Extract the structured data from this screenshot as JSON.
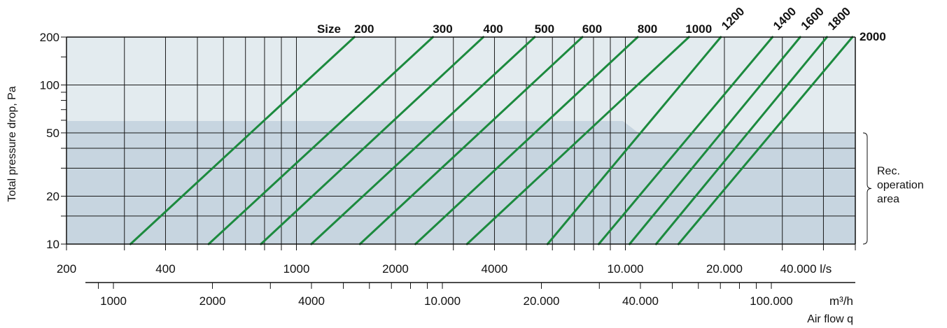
{
  "chart_data": {
    "type": "line",
    "title": "",
    "ylabel": "Total pressure drop, Pa",
    "xlabel": "Air flow q",
    "x_scale": "log",
    "y_scale": "log",
    "xlim": [
      200,
      50000
    ],
    "ylim": [
      10,
      200
    ],
    "x_unit_primary": "l/s",
    "x_unit_secondary": "m³/h",
    "x_tick_labels_primary": [
      {
        "value": 200,
        "label": "200"
      },
      {
        "value": 400,
        "label": "400"
      },
      {
        "value": 1000,
        "label": "1000"
      },
      {
        "value": 2000,
        "label": "2000"
      },
      {
        "value": 4000,
        "label": "4000"
      },
      {
        "value": 10000,
        "label": "10.000"
      },
      {
        "value": 20000,
        "label": "20.000"
      },
      {
        "value": 40000,
        "label": "40.000"
      }
    ],
    "x_tick_labels_secondary": [
      {
        "value": 1000,
        "label": "1000"
      },
      {
        "value": 2000,
        "label": "2000"
      },
      {
        "value": 4000,
        "label": "4000"
      },
      {
        "value": 10000,
        "label": "10.000"
      },
      {
        "value": 20000,
        "label": "20.000"
      },
      {
        "value": 40000,
        "label": "40.000"
      },
      {
        "value": 100000,
        "label": "100.000"
      }
    ],
    "y_tick_labels": [
      {
        "value": 10,
        "label": "10"
      },
      {
        "value": 20,
        "label": "20"
      },
      {
        "value": 50,
        "label": "50"
      },
      {
        "value": 100,
        "label": "100"
      },
      {
        "value": 200,
        "label": "200"
      }
    ],
    "x_grid_lines": [
      300,
      400,
      500,
      600,
      700,
      800,
      900,
      1000,
      2000,
      3000,
      4000,
      5000,
      6000,
      7000,
      8000,
      9000,
      10000,
      20000,
      30000,
      40000
    ],
    "y_grid_lines": [
      10,
      15,
      20,
      30,
      40,
      50,
      100
    ],
    "series_prefix_label": "Size",
    "series": [
      {
        "name": "200",
        "points": [
          [
            313,
            10
          ],
          [
            1500,
            200
          ]
        ]
      },
      {
        "name": "300",
        "points": [
          [
            541,
            10
          ],
          [
            2600,
            200
          ]
        ]
      },
      {
        "name": "400",
        "points": [
          [
            780,
            10
          ],
          [
            3700,
            200
          ]
        ]
      },
      {
        "name": "500",
        "points": [
          [
            1110,
            10
          ],
          [
            5300,
            200
          ]
        ]
      },
      {
        "name": "600",
        "points": [
          [
            1560,
            10
          ],
          [
            7400,
            200
          ]
        ]
      },
      {
        "name": "800",
        "points": [
          [
            2300,
            10
          ],
          [
            10900,
            200
          ]
        ]
      },
      {
        "name": "1000",
        "points": [
          [
            3300,
            10
          ],
          [
            15600,
            200
          ]
        ]
      },
      {
        "name": "1200",
        "points": [
          [
            5800,
            10
          ],
          [
            19500,
            200
          ]
        ]
      },
      {
        "name": "1400",
        "points": [
          [
            8300,
            10
          ],
          [
            28000,
            200
          ]
        ]
      },
      {
        "name": "1600",
        "points": [
          [
            10300,
            10
          ],
          [
            34000,
            200
          ]
        ]
      },
      {
        "name": "1800",
        "points": [
          [
            12400,
            10
          ],
          [
            41000,
            200
          ]
        ]
      },
      {
        "name": "2000",
        "points": [
          [
            14500,
            10
          ],
          [
            49000,
            200
          ]
        ]
      }
    ],
    "rec_operation_area": {
      "label": "Rec.\noperation\narea",
      "y_range": [
        10,
        50
      ]
    },
    "colors": {
      "line": "#1c8a3e",
      "upper_band": "#e3ebef",
      "rec_area": "#c7d5e0",
      "grid": "#1a1a1a"
    }
  }
}
